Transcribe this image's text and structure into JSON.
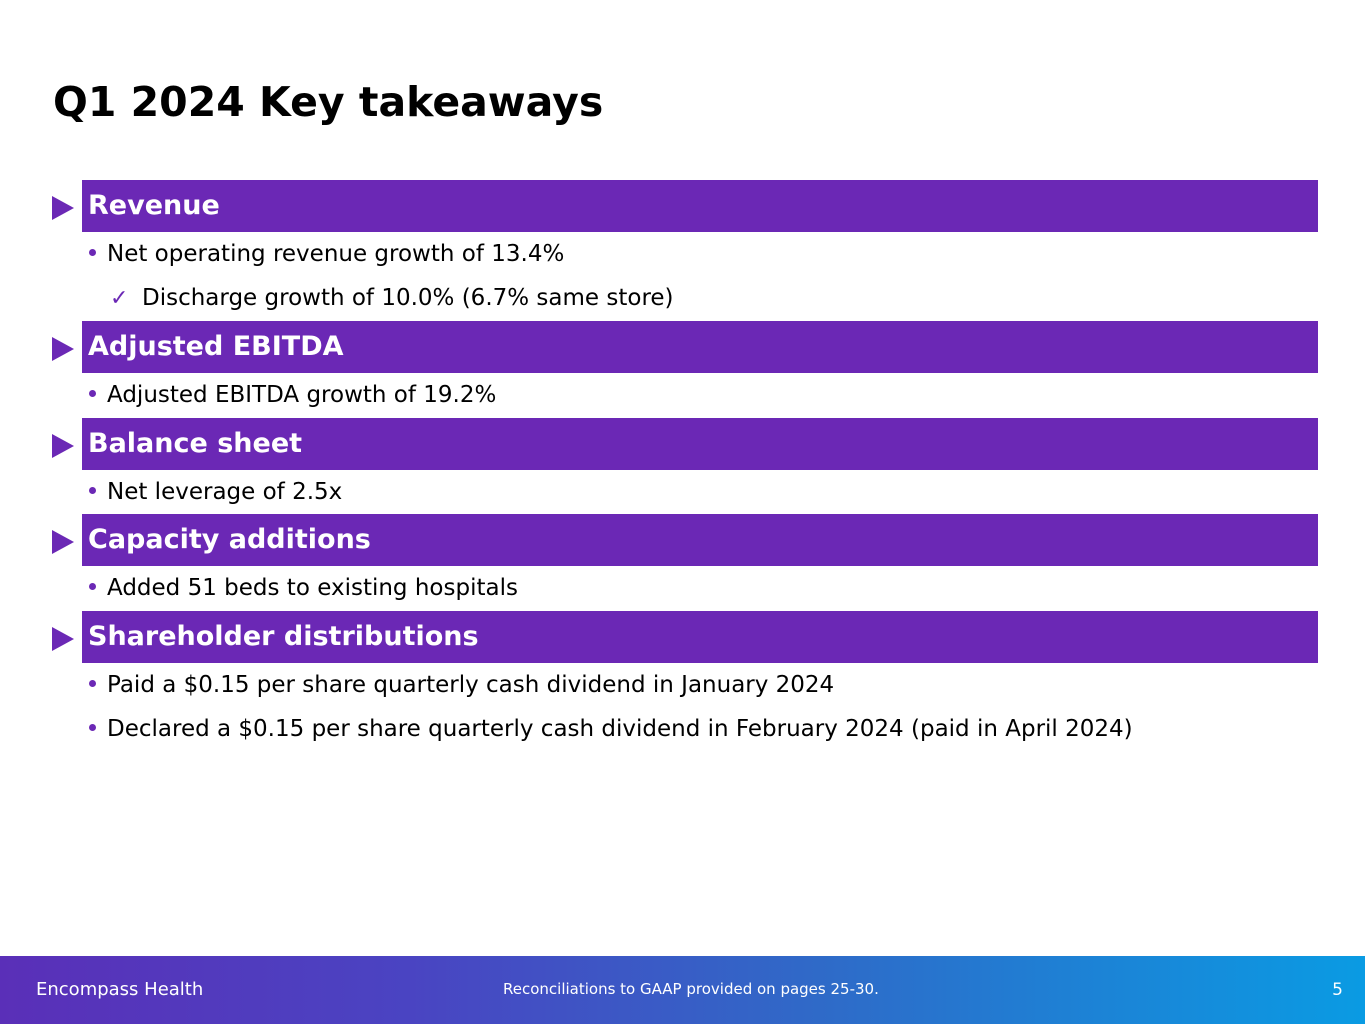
{
  "slide": {
    "title": "Q1 2024 Key takeaways"
  },
  "sections": [
    {
      "heading": "Revenue",
      "bullets": [
        "Net operating revenue growth of 13.4%"
      ],
      "sub_bullets": [
        "Discharge growth of 10.0% (6.7% same store)"
      ]
    },
    {
      "heading": "Adjusted EBITDA",
      "bullets": [
        "Adjusted EBITDA growth of 19.2%"
      ]
    },
    {
      "heading": "Balance sheet",
      "bullets": [
        "Net leverage of 2.5x"
      ]
    },
    {
      "heading": "Capacity additions",
      "bullets": [
        "Added 51 beds to existing hospitals"
      ]
    },
    {
      "heading": "Shareholder distributions",
      "bullets": [
        "Paid a $0.15 per share quarterly cash dividend in January 2024",
        "Declared a $0.15 per share quarterly cash dividend in February 2024 (paid in April 2024)"
      ]
    }
  ],
  "icons": {
    "section_marker": "play-arrow-icon",
    "bullet": "bullet-dot-icon",
    "sub_bullet": "checkmark-icon"
  },
  "colors": {
    "accent": "#6b28b5",
    "footer_start": "#5a2fb8",
    "footer_end": "#0a9be3"
  },
  "footer": {
    "brand": "Encompass Health",
    "note": "Reconciliations to GAAP provided on pages 25-30.",
    "page_number": "5"
  }
}
